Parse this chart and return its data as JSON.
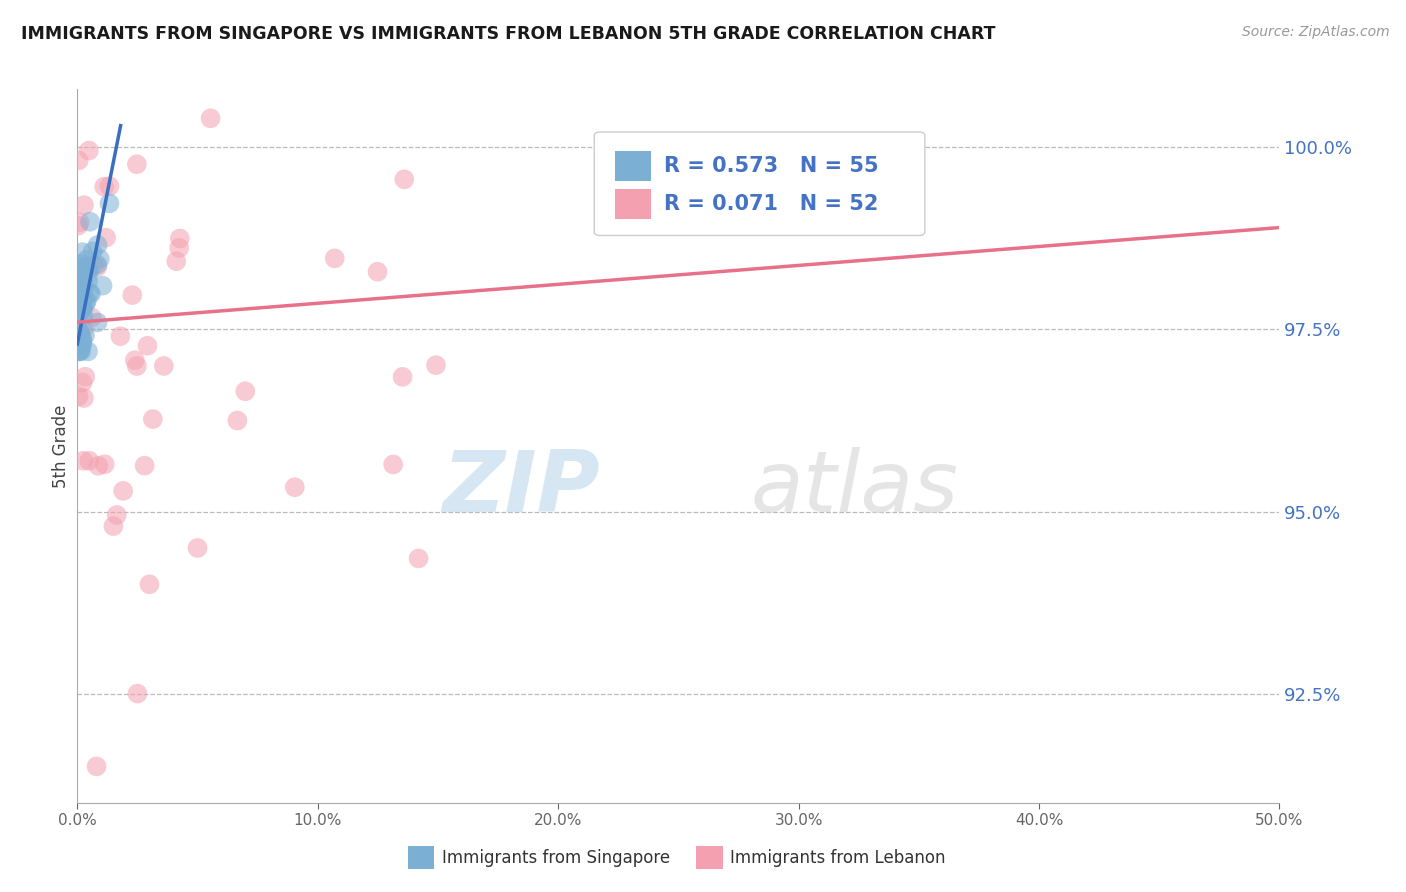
{
  "title": "IMMIGRANTS FROM SINGAPORE VS IMMIGRANTS FROM LEBANON 5TH GRADE CORRELATION CHART",
  "source": "Source: ZipAtlas.com",
  "ylabel": "5th Grade",
  "color_singapore": "#7bafd4",
  "color_lebanon": "#f4a0b0",
  "color_line_singapore": "#3a6fbf",
  "color_line_lebanon": "#e8718a",
  "xmin": 0.0,
  "xmax": 50.0,
  "ymin": 91.0,
  "ymax": 100.8,
  "ytick_vals": [
    92.5,
    95.0,
    97.5,
    100.0
  ],
  "ytick_labels": [
    "92.5%",
    "95.0%",
    "97.5%",
    "100.0%"
  ],
  "xtick_vals": [
    0,
    10,
    20,
    30,
    40,
    50
  ],
  "xtick_labels": [
    "0.0%",
    "10.0%",
    "20.0%",
    "30.0%",
    "40.0%",
    "50.0%"
  ],
  "legend_r1": "R = 0.573",
  "legend_n1": "N = 55",
  "legend_r2": "R = 0.071",
  "legend_n2": "N = 52",
  "legend_label_singapore": "Immigrants from Singapore",
  "legend_label_lebanon": "Immigrants from Lebanon",
  "watermark_zip": "ZIP",
  "watermark_atlas": "atlas",
  "sg_line_x0": 0.0,
  "sg_line_y0": 97.3,
  "sg_line_x1": 1.8,
  "sg_line_y1": 100.3,
  "lb_line_x0": 0.0,
  "lb_line_y0": 97.6,
  "lb_line_x1": 50.0,
  "lb_line_y1": 98.9
}
